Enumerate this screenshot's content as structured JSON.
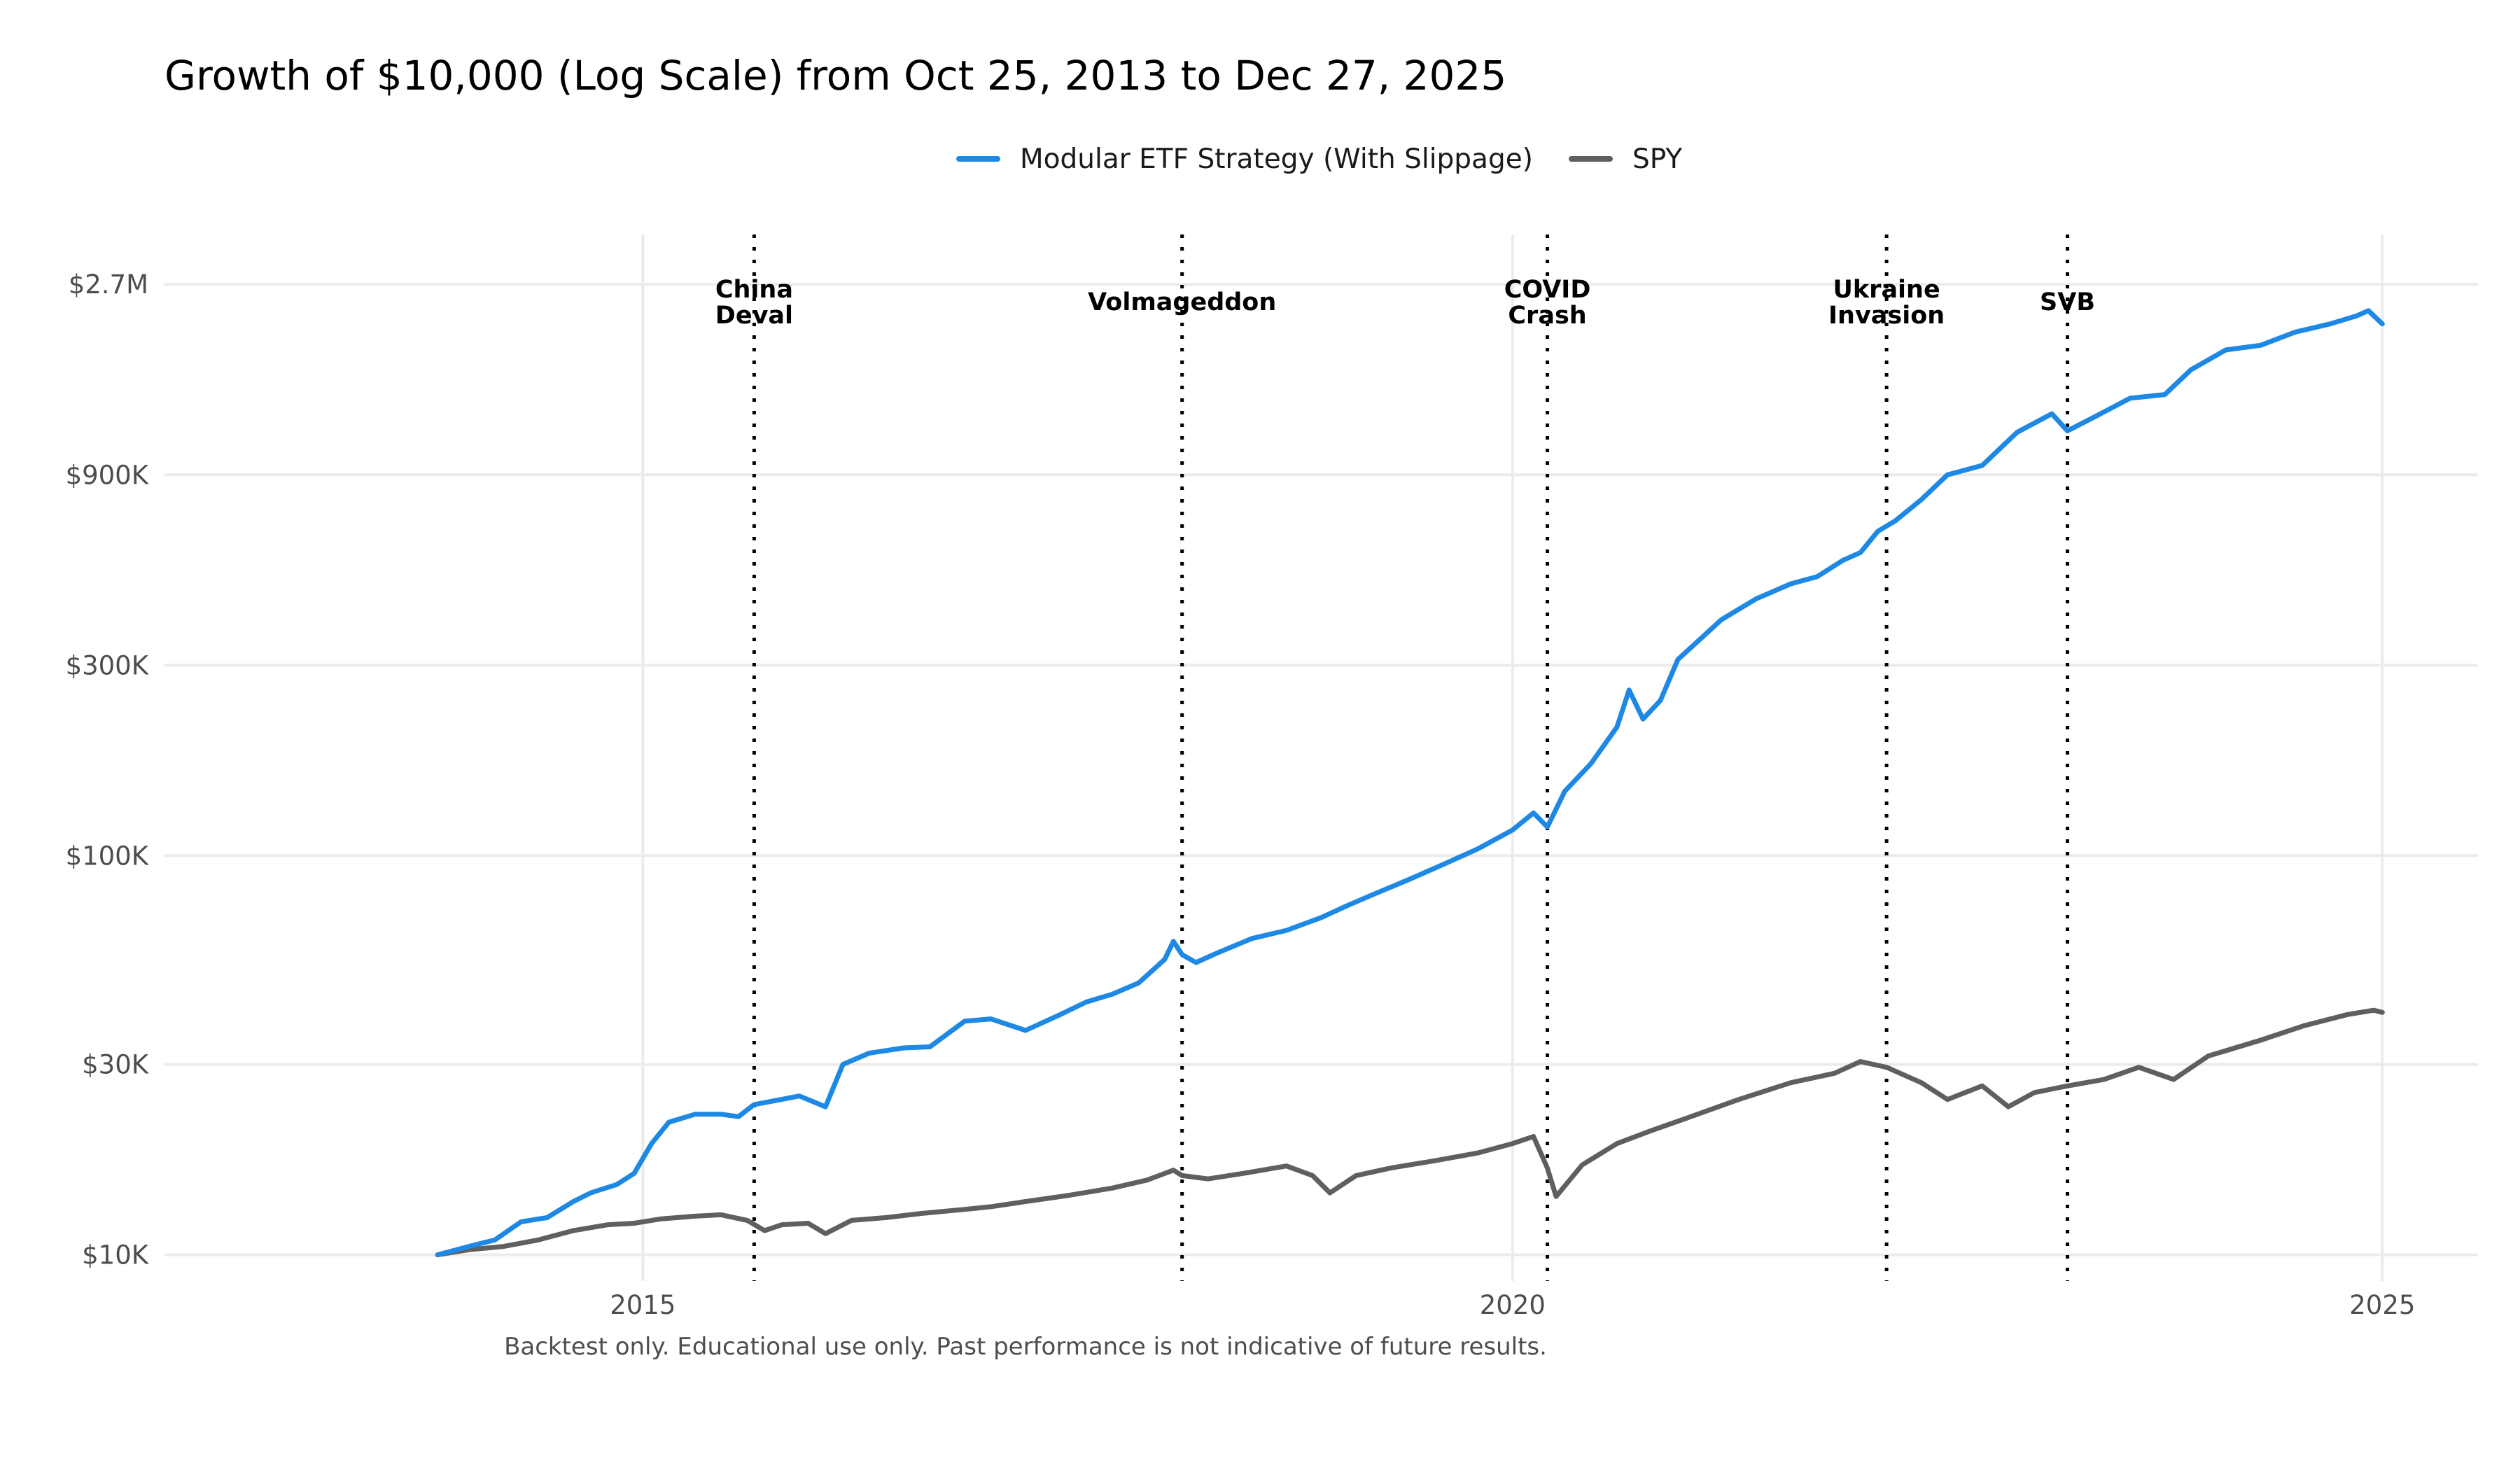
{
  "chart_data": {
    "type": "line",
    "title": "Growth of $10,000 (Log Scale) from Oct 25, 2013 to Dec 27, 2025",
    "caption": "Backtest only. Educational use only. Past performance is not indicative of future results.",
    "xlabel": "",
    "ylabel": "",
    "y_scale": "log",
    "legend_position": "top",
    "grid": true,
    "xlim": [
      2012.25,
      2025.55
    ],
    "ylim": [
      8600,
      3600000
    ],
    "x_ticks": [
      {
        "value": 2015,
        "label": "2015"
      },
      {
        "value": 2020,
        "label": "2020"
      },
      {
        "value": 2025,
        "label": "2025"
      }
    ],
    "y_ticks": [
      {
        "value": 10000,
        "label": "$10K"
      },
      {
        "value": 30000,
        "label": "$30K"
      },
      {
        "value": 100000,
        "label": "$100K"
      },
      {
        "value": 300000,
        "label": "$300K"
      },
      {
        "value": 900000,
        "label": "$900K"
      },
      {
        "value": 2700000,
        "label": "$2.7M"
      }
    ],
    "events": [
      {
        "x": 2015.64,
        "lines": [
          "China",
          "Deval"
        ]
      },
      {
        "x": 2018.1,
        "lines": [
          "Volmageddon"
        ]
      },
      {
        "x": 2020.2,
        "lines": [
          "COVID",
          "Crash"
        ]
      },
      {
        "x": 2022.15,
        "lines": [
          "Ukraine",
          "Invasion"
        ]
      },
      {
        "x": 2023.19,
        "lines": [
          "SVB"
        ]
      }
    ],
    "series": [
      {
        "name": "Modular ETF Strategy (With Slippage)",
        "color": "#1e88e5",
        "points": [
          [
            2013.82,
            10000
          ],
          [
            2014.0,
            10500
          ],
          [
            2014.15,
            10900
          ],
          [
            2014.3,
            12100
          ],
          [
            2014.45,
            12400
          ],
          [
            2014.6,
            13600
          ],
          [
            2014.7,
            14300
          ],
          [
            2014.85,
            15000
          ],
          [
            2014.95,
            16000
          ],
          [
            2015.05,
            19000
          ],
          [
            2015.15,
            21500
          ],
          [
            2015.3,
            22500
          ],
          [
            2015.45,
            22500
          ],
          [
            2015.55,
            22200
          ],
          [
            2015.64,
            23800
          ],
          [
            2015.75,
            24300
          ],
          [
            2015.9,
            25000
          ],
          [
            2016.05,
            23500
          ],
          [
            2016.15,
            30000
          ],
          [
            2016.3,
            32000
          ],
          [
            2016.5,
            33000
          ],
          [
            2016.65,
            33200
          ],
          [
            2016.85,
            38500
          ],
          [
            2017.0,
            39000
          ],
          [
            2017.2,
            36500
          ],
          [
            2017.4,
            40000
          ],
          [
            2017.55,
            43000
          ],
          [
            2017.7,
            45000
          ],
          [
            2017.85,
            48000
          ],
          [
            2018.0,
            55000
          ],
          [
            2018.05,
            61000
          ],
          [
            2018.1,
            56500
          ],
          [
            2018.18,
            54000
          ],
          [
            2018.3,
            57000
          ],
          [
            2018.5,
            62000
          ],
          [
            2018.7,
            65000
          ],
          [
            2018.9,
            70000
          ],
          [
            2019.05,
            75000
          ],
          [
            2019.2,
            80000
          ],
          [
            2019.4,
            87000
          ],
          [
            2019.6,
            95000
          ],
          [
            2019.8,
            104000
          ],
          [
            2020.0,
            116000
          ],
          [
            2020.12,
            128000
          ],
          [
            2020.2,
            118000
          ],
          [
            2020.3,
            145000
          ],
          [
            2020.45,
            170000
          ],
          [
            2020.6,
            210000
          ],
          [
            2020.67,
            260000
          ],
          [
            2020.75,
            220000
          ],
          [
            2020.85,
            245000
          ],
          [
            2020.95,
            310000
          ],
          [
            2021.05,
            340000
          ],
          [
            2021.2,
            390000
          ],
          [
            2021.4,
            440000
          ],
          [
            2021.6,
            480000
          ],
          [
            2021.75,
            500000
          ],
          [
            2021.9,
            550000
          ],
          [
            2022.0,
            575000
          ],
          [
            2022.1,
            650000
          ],
          [
            2022.2,
            690000
          ],
          [
            2022.35,
            780000
          ],
          [
            2022.5,
            900000
          ],
          [
            2022.7,
            950000
          ],
          [
            2022.9,
            1150000
          ],
          [
            2023.1,
            1280000
          ],
          [
            2023.19,
            1160000
          ],
          [
            2023.35,
            1260000
          ],
          [
            2023.55,
            1400000
          ],
          [
            2023.75,
            1430000
          ],
          [
            2023.9,
            1650000
          ],
          [
            2024.1,
            1850000
          ],
          [
            2024.3,
            1900000
          ],
          [
            2024.5,
            2050000
          ],
          [
            2024.7,
            2150000
          ],
          [
            2024.85,
            2250000
          ],
          [
            2024.92,
            2320000
          ],
          [
            2025.0,
            2150000
          ]
        ]
      },
      {
        "name": "SPY",
        "color": "#5f5f5f",
        "points": [
          [
            2013.82,
            10000
          ],
          [
            2014.0,
            10300
          ],
          [
            2014.2,
            10500
          ],
          [
            2014.4,
            10900
          ],
          [
            2014.6,
            11500
          ],
          [
            2014.8,
            11900
          ],
          [
            2014.95,
            12000
          ],
          [
            2015.1,
            12300
          ],
          [
            2015.3,
            12500
          ],
          [
            2015.45,
            12600
          ],
          [
            2015.6,
            12200
          ],
          [
            2015.7,
            11500
          ],
          [
            2015.8,
            11900
          ],
          [
            2015.95,
            12000
          ],
          [
            2016.05,
            11300
          ],
          [
            2016.2,
            12200
          ],
          [
            2016.4,
            12400
          ],
          [
            2016.6,
            12700
          ],
          [
            2016.85,
            13000
          ],
          [
            2017.0,
            13200
          ],
          [
            2017.2,
            13600
          ],
          [
            2017.45,
            14100
          ],
          [
            2017.7,
            14700
          ],
          [
            2017.9,
            15400
          ],
          [
            2018.05,
            16300
          ],
          [
            2018.1,
            15800
          ],
          [
            2018.25,
            15500
          ],
          [
            2018.45,
            16000
          ],
          [
            2018.7,
            16700
          ],
          [
            2018.85,
            15800
          ],
          [
            2018.95,
            14300
          ],
          [
            2019.1,
            15800
          ],
          [
            2019.3,
            16500
          ],
          [
            2019.55,
            17200
          ],
          [
            2019.8,
            18000
          ],
          [
            2020.0,
            19000
          ],
          [
            2020.12,
            19800
          ],
          [
            2020.2,
            16500
          ],
          [
            2020.25,
            14000
          ],
          [
            2020.4,
            16800
          ],
          [
            2020.6,
            19000
          ],
          [
            2020.8,
            20500
          ],
          [
            2021.0,
            22000
          ],
          [
            2021.3,
            24500
          ],
          [
            2021.6,
            27000
          ],
          [
            2021.85,
            28500
          ],
          [
            2022.0,
            30500
          ],
          [
            2022.15,
            29500
          ],
          [
            2022.35,
            27000
          ],
          [
            2022.5,
            24500
          ],
          [
            2022.7,
            26500
          ],
          [
            2022.85,
            23500
          ],
          [
            2023.0,
            25500
          ],
          [
            2023.19,
            26500
          ],
          [
            2023.4,
            27500
          ],
          [
            2023.6,
            29500
          ],
          [
            2023.8,
            27500
          ],
          [
            2024.0,
            31500
          ],
          [
            2024.3,
            34500
          ],
          [
            2024.55,
            37500
          ],
          [
            2024.8,
            40000
          ],
          [
            2024.95,
            41000
          ],
          [
            2025.0,
            40500
          ]
        ]
      }
    ]
  }
}
